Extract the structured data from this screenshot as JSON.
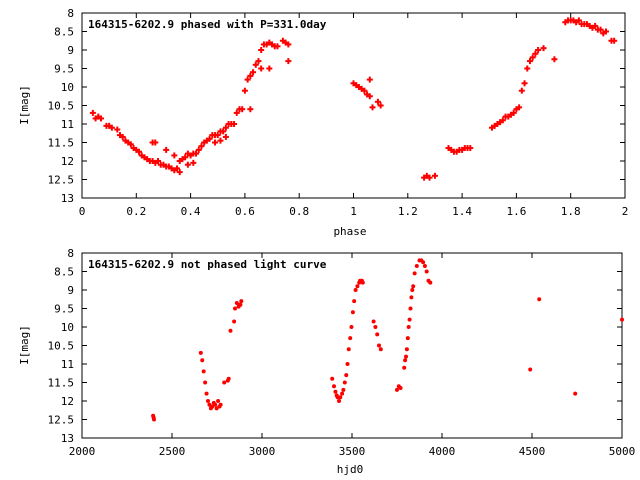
{
  "chart_data": [
    {
      "type": "scatter",
      "title": "164315-6202.9 phased with P=331.0day",
      "xlabel": "phase",
      "ylabel": "I[mag]",
      "xlim": [
        0,
        2
      ],
      "ylim": [
        13,
        8
      ],
      "y_inverted": true,
      "x_ticks": [
        0,
        0.2,
        0.4,
        0.6,
        0.8,
        1,
        1.2,
        1.4,
        1.6,
        1.8,
        2
      ],
      "x_tick_labels": [
        "0",
        "0.2",
        "0.4",
        "0.6",
        "0.8",
        "1",
        "1.2",
        "1.4",
        "1.6",
        "1.8",
        "2"
      ],
      "y_ticks": [
        8,
        8.5,
        9,
        9.5,
        10,
        10.5,
        11,
        11.5,
        12,
        12.5,
        13
      ],
      "y_tick_labels": [
        "8",
        "8.5",
        "9",
        "9.5",
        "10",
        "10.5",
        "11",
        "11.5",
        "12",
        "12.5",
        "13"
      ],
      "marker": "cross",
      "color": "#ff0000",
      "grid": false,
      "x": [
        0.04,
        0.05,
        0.06,
        0.07,
        0.09,
        0.1,
        0.11,
        0.13,
        0.14,
        0.15,
        0.16,
        0.17,
        0.18,
        0.19,
        0.2,
        0.21,
        0.22,
        0.23,
        0.24,
        0.25,
        0.26,
        0.27,
        0.28,
        0.29,
        0.3,
        0.31,
        0.32,
        0.33,
        0.34,
        0.35,
        0.36,
        0.37,
        0.38,
        0.39,
        0.4,
        0.41,
        0.42,
        0.43,
        0.44,
        0.45,
        0.46,
        0.47,
        0.48,
        0.49,
        0.5,
        0.51,
        0.52,
        0.53,
        0.54,
        0.55,
        0.56,
        0.57,
        0.58,
        0.59,
        0.6,
        0.61,
        0.62,
        0.63,
        0.64,
        0.65,
        0.66,
        0.67,
        0.68,
        0.69,
        0.7,
        0.71,
        0.72,
        0.74,
        0.75,
        0.76,
        0.26,
        0.27,
        0.31,
        0.34,
        0.36,
        0.39,
        0.41,
        0.49,
        0.51,
        0.53,
        0.62,
        0.66,
        0.69,
        0.76,
        1.0,
        1.01,
        1.02,
        1.03,
        1.04,
        1.05,
        1.06,
        1.06,
        1.07,
        1.09,
        1.1,
        1.26,
        1.27,
        1.28,
        1.3,
        1.35,
        1.36,
        1.37,
        1.38,
        1.39,
        1.4,
        1.41,
        1.42,
        1.43,
        1.51,
        1.52,
        1.53,
        1.54,
        1.55,
        1.56,
        1.57,
        1.58,
        1.59,
        1.6,
        1.61,
        1.62,
        1.63,
        1.64,
        1.65,
        1.66,
        1.67,
        1.68,
        1.7,
        1.74,
        1.78,
        1.79,
        1.8,
        1.81,
        1.82,
        1.83,
        1.84,
        1.85,
        1.86,
        1.87,
        1.88,
        1.89,
        1.9,
        1.91,
        1.92,
        1.93,
        1.95,
        1.96
      ],
      "y": [
        10.7,
        10.85,
        10.8,
        10.85,
        11.05,
        11.05,
        11.1,
        11.15,
        11.3,
        11.35,
        11.45,
        11.5,
        11.55,
        11.65,
        11.7,
        11.75,
        11.85,
        11.9,
        11.95,
        12.0,
        12.0,
        12.05,
        12.0,
        12.1,
        12.1,
        12.15,
        12.15,
        12.2,
        12.25,
        12.2,
        12.0,
        11.95,
        11.9,
        11.8,
        11.85,
        11.8,
        11.8,
        11.7,
        11.6,
        11.5,
        11.45,
        11.4,
        11.3,
        11.3,
        11.3,
        11.2,
        11.2,
        11.1,
        11.0,
        11.0,
        11.0,
        10.7,
        10.6,
        10.6,
        10.1,
        9.8,
        9.7,
        9.6,
        9.4,
        9.3,
        9.0,
        8.85,
        8.85,
        8.8,
        8.85,
        8.9,
        8.9,
        8.75,
        8.8,
        8.85,
        11.5,
        11.5,
        11.7,
        11.85,
        12.3,
        12.1,
        12.05,
        11.5,
        11.45,
        11.35,
        10.6,
        9.5,
        9.5,
        9.3,
        9.9,
        9.95,
        10.0,
        10.05,
        10.1,
        10.2,
        9.8,
        10.25,
        10.55,
        10.4,
        10.5,
        12.45,
        12.4,
        12.45,
        12.4,
        11.65,
        11.7,
        11.75,
        11.75,
        11.7,
        11.7,
        11.65,
        11.65,
        11.65,
        11.1,
        11.05,
        11.0,
        10.95,
        10.9,
        10.8,
        10.8,
        10.75,
        10.7,
        10.6,
        10.55,
        10.1,
        9.9,
        9.5,
        9.3,
        9.2,
        9.1,
        9.0,
        8.95,
        9.25,
        8.25,
        8.2,
        8.2,
        8.2,
        8.25,
        8.2,
        8.3,
        8.3,
        8.3,
        8.35,
        8.4,
        8.35,
        8.45,
        8.45,
        8.55,
        8.5,
        8.75,
        8.75
      ]
    },
    {
      "type": "scatter",
      "title": "164315-6202.9 not phased light curve",
      "xlabel": "hjd0",
      "ylabel": "I[mag]",
      "xlim": [
        2000,
        5000
      ],
      "ylim": [
        13,
        8
      ],
      "y_inverted": true,
      "x_ticks": [
        2000,
        2500,
        3000,
        3500,
        4000,
        4500,
        5000
      ],
      "x_tick_labels": [
        "2000",
        "2500",
        "3000",
        "3500",
        "4000",
        "4500",
        "5000"
      ],
      "y_ticks": [
        8,
        8.5,
        9,
        9.5,
        10,
        10.5,
        11,
        11.5,
        12,
        12.5,
        13
      ],
      "y_tick_labels": [
        "8",
        "8.5",
        "9",
        "9.5",
        "10",
        "10.5",
        "11",
        "11.5",
        "12",
        "12.5",
        "13"
      ],
      "marker": "dot",
      "color": "#ff0000",
      "grid": false,
      "x": [
        2395,
        2398,
        2400,
        2660,
        2668,
        2676,
        2684,
        2692,
        2700,
        2708,
        2716,
        2724,
        2732,
        2740,
        2748,
        2756,
        2764,
        2770,
        2790,
        2810,
        2815,
        2825,
        2845,
        2850,
        2860,
        2870,
        2875,
        2880,
        2885,
        3390,
        3400,
        3408,
        3415,
        3420,
        3428,
        3435,
        3445,
        3452,
        3460,
        3468,
        3475,
        3482,
        3490,
        3497,
        3505,
        3512,
        3520,
        3530,
        3540,
        3545,
        3555,
        3560,
        3620,
        3630,
        3640,
        3650,
        3660,
        3750,
        3760,
        3770,
        3790,
        3795,
        3800,
        3805,
        3810,
        3815,
        3820,
        3825,
        3830,
        3835,
        3840,
        3848,
        3860,
        3875,
        3885,
        3895,
        3905,
        3915,
        3925,
        3935,
        4490,
        4540,
        4740,
        5000
      ],
      "y": [
        12.4,
        12.45,
        12.5,
        10.7,
        10.9,
        11.2,
        11.5,
        11.8,
        12.0,
        12.1,
        12.2,
        12.15,
        12.05,
        12.1,
        12.2,
        12.0,
        12.15,
        12.1,
        11.5,
        11.45,
        11.4,
        10.1,
        9.85,
        9.5,
        9.35,
        9.45,
        9.4,
        9.4,
        9.3,
        11.4,
        11.6,
        11.75,
        11.85,
        11.9,
        12.0,
        11.9,
        11.8,
        11.7,
        11.5,
        11.3,
        11.0,
        10.6,
        10.3,
        10.0,
        9.6,
        9.3,
        9.0,
        8.9,
        8.8,
        8.75,
        8.75,
        8.8,
        9.85,
        10.0,
        10.2,
        10.5,
        10.6,
        11.7,
        11.6,
        11.65,
        11.1,
        10.9,
        10.8,
        10.6,
        10.3,
        10.0,
        9.8,
        9.5,
        9.2,
        9.0,
        8.9,
        8.55,
        8.35,
        8.2,
        8.2,
        8.25,
        8.35,
        8.5,
        8.75,
        8.8,
        11.15,
        9.25,
        11.8,
        9.8
      ]
    }
  ]
}
